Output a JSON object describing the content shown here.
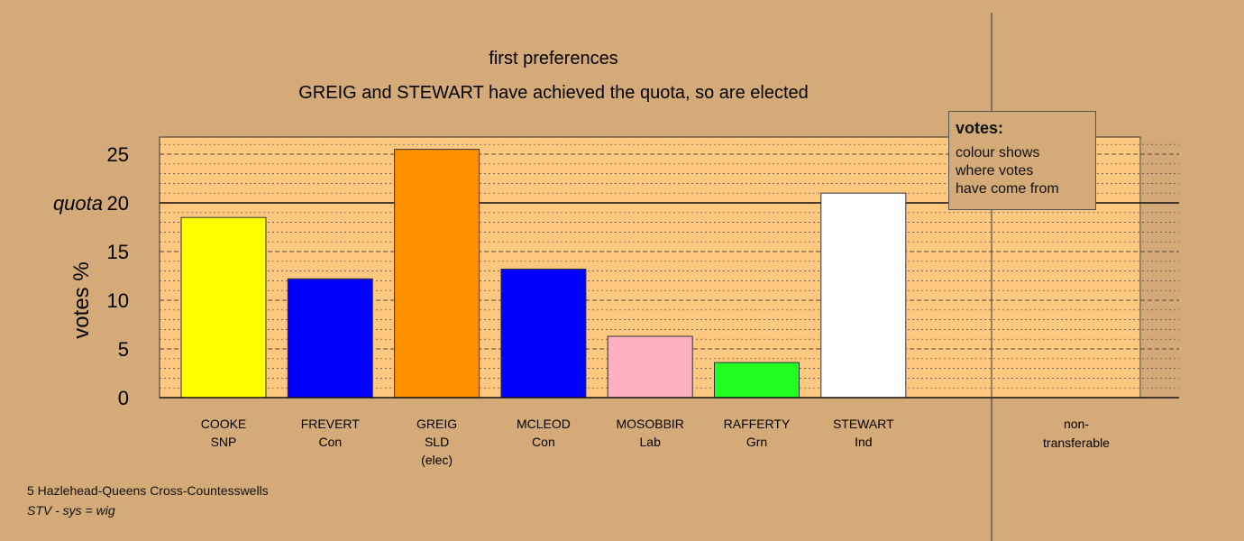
{
  "chart_data": {
    "type": "bar",
    "title": "first preferences",
    "subtitle": "GREIG and STEWART have achieved the quota, so are elected",
    "ylabel": "votes %",
    "quota_label": "quota",
    "quota": 20,
    "ylim": [
      0,
      26.7
    ],
    "yticks": [
      0,
      5,
      10,
      15,
      20,
      25
    ],
    "categories": [
      {
        "name": "COOKE",
        "party": "SNP",
        "note": ""
      },
      {
        "name": "FREVERT",
        "party": "Con",
        "note": ""
      },
      {
        "name": "GREIG",
        "party": "SLD",
        "note": "(elec)"
      },
      {
        "name": "MCLEOD",
        "party": "Con",
        "note": ""
      },
      {
        "name": "MOSOBBIR",
        "party": "Lab",
        "note": ""
      },
      {
        "name": "RAFFERTY",
        "party": "Grn",
        "note": ""
      },
      {
        "name": "STEWART",
        "party": "Ind",
        "note": ""
      }
    ],
    "values": [
      18.5,
      12.2,
      25.5,
      13.2,
      6.3,
      3.6,
      21.0
    ],
    "colors": [
      "#ffff00",
      "#0000ff",
      "#ff9000",
      "#0000ff",
      "#ffb0c0",
      "#20ff20",
      "#ffffff"
    ],
    "nontransferable_label": [
      "non-",
      "transferable"
    ],
    "nontransferable_value": 0,
    "grid": "dashed at major ticks, dotted at minor ticks"
  },
  "legend": {
    "title": "votes:",
    "lines": [
      "colour shows",
      "where votes",
      "have come from"
    ]
  },
  "footer": {
    "ward": "5 Hazlehead-Queens Cross-Countesswells",
    "system": "STV - sys = wig"
  },
  "colors": {
    "background": "#d4aa78",
    "plot_background": "#ffc880",
    "axis": "#111111"
  }
}
